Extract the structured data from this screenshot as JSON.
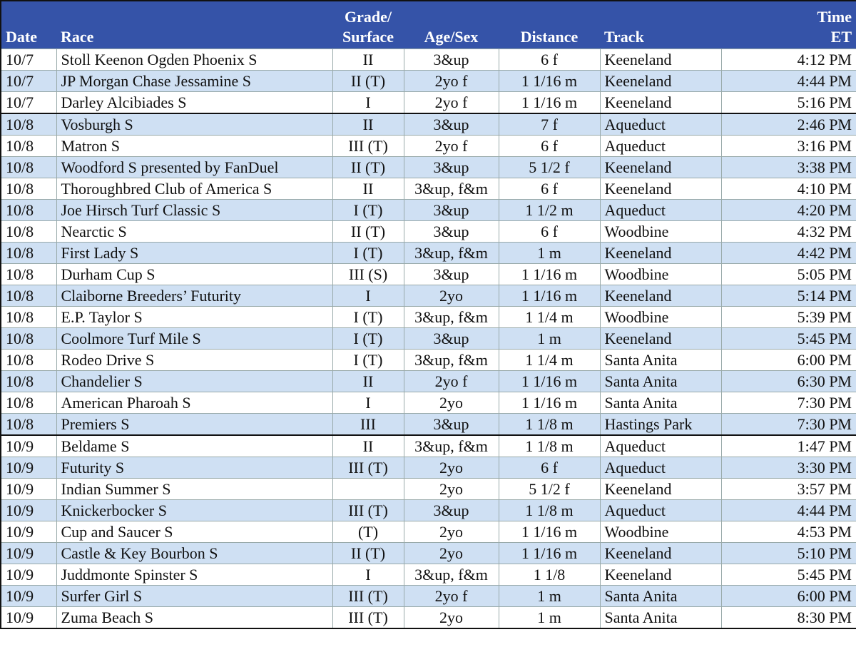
{
  "table": {
    "header": [
      [
        "Date"
      ],
      [
        "Race"
      ],
      [
        "Grade/",
        "Surface"
      ],
      [
        "Age/Sex"
      ],
      [
        "Distance"
      ],
      [
        "Track"
      ],
      [
        "Time",
        "ET"
      ]
    ],
    "rows": [
      [
        "10/7",
        "Stoll Keenon Ogden Phoenix S",
        "II",
        "3&up",
        "6 f",
        "Keeneland",
        "4:12 PM"
      ],
      [
        "10/7",
        "JP Morgan Chase Jessamine S",
        "II (T)",
        "2yo f",
        "1 1/16 m",
        "Keeneland",
        "4:44 PM"
      ],
      [
        "10/7",
        "Darley Alcibiades S",
        "I",
        "2yo f",
        "1 1/16 m",
        "Keeneland",
        "5:16 PM"
      ],
      [
        "10/8",
        "Vosburgh S",
        "II",
        "3&up",
        "7 f",
        "Aqueduct",
        "2:46 PM"
      ],
      [
        "10/8",
        "Matron S",
        "III (T)",
        "2yo f",
        "6 f",
        "Aqueduct",
        "3:16 PM"
      ],
      [
        "10/8",
        "Woodford S presented by FanDuel",
        "II (T)",
        "3&up",
        "5 1/2 f",
        "Keeneland",
        "3:38 PM"
      ],
      [
        "10/8",
        "Thoroughbred Club of America S",
        "II",
        "3&up, f&m",
        "6 f",
        "Keeneland",
        "4:10 PM"
      ],
      [
        "10/8",
        "Joe Hirsch Turf Classic S",
        "I (T)",
        "3&up",
        "1 1/2 m",
        "Aqueduct",
        "4:20 PM"
      ],
      [
        "10/8",
        "Nearctic S",
        "II (T)",
        "3&up",
        "6 f",
        "Woodbine",
        "4:32 PM"
      ],
      [
        "10/8",
        "First Lady S",
        "I (T)",
        "3&up, f&m",
        "1 m",
        "Keeneland",
        "4:42 PM"
      ],
      [
        "10/8",
        "Durham Cup S",
        "III (S)",
        "3&up",
        "1 1/16 m",
        "Woodbine",
        "5:05 PM"
      ],
      [
        "10/8",
        "Claiborne Breeders’ Futurity",
        "I",
        "2yo",
        "1 1/16 m",
        "Keeneland",
        "5:14 PM"
      ],
      [
        "10/8",
        "E.P. Taylor S",
        "I (T)",
        "3&up, f&m",
        "1 1/4 m",
        "Woodbine",
        "5:39 PM"
      ],
      [
        "10/8",
        "Coolmore Turf Mile S",
        "I (T)",
        "3&up",
        "1 m",
        "Keeneland",
        "5:45 PM"
      ],
      [
        "10/8",
        "Rodeo Drive S",
        "I (T)",
        "3&up, f&m",
        "1 1/4 m",
        "Santa Anita",
        "6:00 PM"
      ],
      [
        "10/8",
        "Chandelier S",
        "II",
        "2yo f",
        "1 1/16 m",
        "Santa Anita",
        "6:30 PM"
      ],
      [
        "10/8",
        "American Pharoah S",
        "I",
        "2yo",
        "1 1/16 m",
        "Santa Anita",
        "7:30 PM"
      ],
      [
        "10/8",
        "Premiers S",
        "III",
        "3&up",
        "1 1/8 m",
        "Hastings Park",
        "7:30 PM"
      ],
      [
        "10/9",
        "Beldame S",
        "II",
        "3&up, f&m",
        "1 1/8 m",
        "Aqueduct",
        "1:47 PM"
      ],
      [
        "10/9",
        "Futurity S",
        "III (T)",
        "2yo",
        "6 f",
        "Aqueduct",
        "3:30 PM"
      ],
      [
        "10/9",
        "Indian Summer S",
        null,
        "2yo",
        "5 1/2 f",
        "Keeneland",
        "3:57 PM"
      ],
      [
        "10/9",
        "Knickerbocker S",
        "III (T)",
        "3&up",
        "1 1/8 m",
        "Aqueduct",
        "4:44 PM"
      ],
      [
        "10/9",
        "Cup and Saucer S",
        "(T)",
        "2yo",
        "1 1/16 m",
        "Woodbine",
        "4:53 PM"
      ],
      [
        "10/9",
        "Castle & Key Bourbon S",
        "II (T)",
        "2yo",
        "1 1/16 m",
        "Keeneland",
        "5:10 PM"
      ],
      [
        "10/9",
        "Juddmonte Spinster S",
        "I",
        "3&up, f&m",
        "1 1/8",
        "Keeneland",
        "5:45 PM"
      ],
      [
        "10/9",
        "Surfer Girl S",
        "III (T)",
        "2yo f",
        "1 m",
        "Santa Anita",
        "6:00 PM"
      ],
      [
        "10/9",
        "Zuma Beach S",
        "III (T)",
        "2yo",
        "1 m",
        "Santa Anita",
        "8:30 PM"
      ]
    ]
  }
}
